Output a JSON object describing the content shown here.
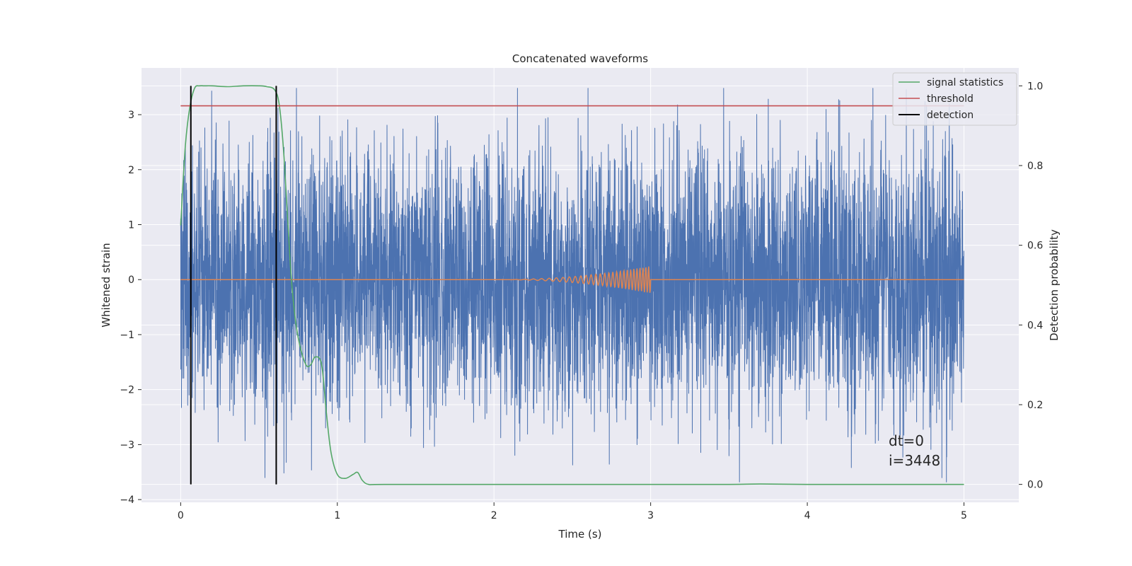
{
  "chart_data": {
    "type": "line",
    "title": "Concatenated waveforms",
    "xlabel": "Time (s)",
    "ylabel": "Whitened strain",
    "y2label": "Detection probability",
    "xlim": [
      -0.25,
      5.35
    ],
    "ylim": [
      -4.05,
      3.85
    ],
    "y2lim": [
      -0.045,
      1.045
    ],
    "xticks": [
      0,
      1,
      2,
      3,
      4,
      5
    ],
    "yticks": [
      -4,
      -3,
      -2,
      -1,
      0,
      1,
      2,
      3
    ],
    "y2ticks": [
      0.0,
      0.2,
      0.4,
      0.6,
      0.8,
      1.0
    ],
    "grid": true,
    "legend_position": "top-right",
    "background_color": "#eaeaf2",
    "colors": {
      "strain": "#4c72b0",
      "injection": "#dd8452",
      "signal_statistics": "#55a868",
      "threshold": "#c44e52",
      "detection": "#000000"
    },
    "strain": {
      "x_range": [
        0,
        5
      ],
      "typical_amplitude": 1.2,
      "max_peak": 3.48,
      "min_peak": -3.68
    },
    "injection": {
      "x_range": [
        2.0,
        3.0
      ],
      "peak_amplitude": 0.25,
      "baseline": 0
    },
    "signal_statistics": {
      "x": [
        0,
        0.03,
        0.06,
        0.09,
        0.12,
        0.15,
        0.2,
        0.3,
        0.4,
        0.5,
        0.55,
        0.6,
        0.63,
        0.66,
        0.7,
        0.73,
        0.76,
        0.8,
        0.83,
        0.86,
        0.9,
        0.93,
        0.96,
        1.0,
        1.05,
        1.1,
        1.13,
        1.16,
        1.2,
        1.3,
        2.0,
        3.0,
        3.5,
        3.7,
        4.0,
        4.5,
        5.0
      ],
      "values": [
        0.65,
        0.85,
        0.95,
        0.995,
        1.0,
        1.0,
        1.0,
        0.998,
        1.0,
        1.0,
        0.998,
        0.99,
        0.95,
        0.82,
        0.55,
        0.42,
        0.35,
        0.3,
        0.3,
        0.32,
        0.3,
        0.18,
        0.08,
        0.025,
        0.015,
        0.025,
        0.03,
        0.01,
        0.0,
        0.0,
        0.0,
        0.0,
        0.0,
        0.001,
        0.0,
        0.0,
        0.0
      ]
    },
    "threshold": {
      "value": 0.95,
      "x_range": [
        0,
        5
      ]
    },
    "detections": [
      0.065,
      0.61
    ],
    "legend": [
      "signal statistics",
      "threshold",
      "detection"
    ],
    "annotations": [
      "dt=0",
      "i=3448"
    ]
  }
}
